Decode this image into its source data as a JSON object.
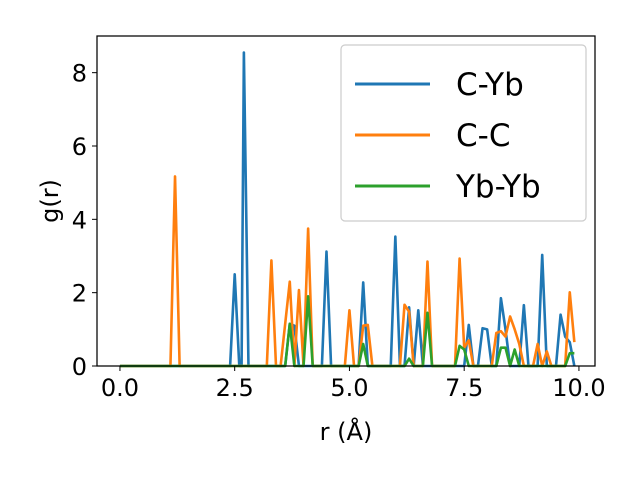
{
  "chart_data": {
    "type": "line",
    "xlabel": "r (Å)",
    "ylabel": "g(r)",
    "xlim": [
      -0.5,
      10.35
    ],
    "ylim": [
      0,
      9.0
    ],
    "xticks": [
      0.0,
      2.5,
      5.0,
      7.5,
      10.0
    ],
    "xtick_labels": [
      "0.0",
      "2.5",
      "5.0",
      "7.5",
      "10.0"
    ],
    "yticks": [
      0,
      2,
      4,
      6,
      8
    ],
    "ytick_labels": [
      "0",
      "2",
      "4",
      "6",
      "8"
    ],
    "grid": false,
    "legend_position": "top-right",
    "series": [
      {
        "name": "C-Yb",
        "color": "#1f77b4",
        "points": [
          [
            0,
            0
          ],
          [
            2.3,
            0
          ],
          [
            2.4,
            0
          ],
          [
            2.5,
            2.5
          ],
          [
            2.6,
            0
          ],
          [
            2.65,
            0
          ],
          [
            2.7,
            8.55
          ],
          [
            2.8,
            0
          ],
          [
            3.6,
            0
          ],
          [
            3.7,
            1.15
          ],
          [
            3.8,
            1.1
          ],
          [
            3.9,
            0
          ],
          [
            4.4,
            0
          ],
          [
            4.5,
            3.12
          ],
          [
            4.6,
            0
          ],
          [
            5.2,
            0
          ],
          [
            5.3,
            2.28
          ],
          [
            5.4,
            0
          ],
          [
            5.9,
            0
          ],
          [
            6.0,
            3.53
          ],
          [
            6.1,
            0
          ],
          [
            6.2,
            0
          ],
          [
            6.3,
            1.6
          ],
          [
            6.4,
            0
          ],
          [
            6.5,
            1.52
          ],
          [
            6.6,
            0
          ],
          [
            7.5,
            0
          ],
          [
            7.6,
            1.12
          ],
          [
            7.7,
            0
          ],
          [
            7.8,
            0
          ],
          [
            7.9,
            1.03
          ],
          [
            8.0,
            1.0
          ],
          [
            8.1,
            0
          ],
          [
            8.2,
            0
          ],
          [
            8.3,
            1.85
          ],
          [
            8.4,
            1.0
          ],
          [
            8.5,
            0
          ],
          [
            8.7,
            0
          ],
          [
            8.8,
            1.66
          ],
          [
            8.9,
            0
          ],
          [
            9.1,
            0
          ],
          [
            9.2,
            3.03
          ],
          [
            9.3,
            0
          ],
          [
            9.5,
            0
          ],
          [
            9.6,
            1.4
          ],
          [
            9.7,
            0.8
          ],
          [
            9.8,
            0.65
          ],
          [
            9.9,
            0
          ]
        ]
      },
      {
        "name": "C-C",
        "color": "#ff7f0e",
        "points": [
          [
            0,
            0
          ],
          [
            1.1,
            0
          ],
          [
            1.2,
            5.17
          ],
          [
            1.3,
            0
          ],
          [
            3.2,
            0
          ],
          [
            3.3,
            2.88
          ],
          [
            3.4,
            0
          ],
          [
            3.5,
            0
          ],
          [
            3.7,
            2.3
          ],
          [
            3.8,
            0
          ],
          [
            3.9,
            2.07
          ],
          [
            4.0,
            0
          ],
          [
            4.1,
            3.75
          ],
          [
            4.2,
            0
          ],
          [
            4.9,
            0
          ],
          [
            5.0,
            1.52
          ],
          [
            5.1,
            0
          ],
          [
            5.2,
            0
          ],
          [
            5.3,
            1.1
          ],
          [
            5.4,
            1.12
          ],
          [
            5.5,
            0
          ],
          [
            6.1,
            0
          ],
          [
            6.2,
            1.67
          ],
          [
            6.3,
            1.48
          ],
          [
            6.4,
            0
          ],
          [
            6.6,
            0
          ],
          [
            6.7,
            2.85
          ],
          [
            6.8,
            0
          ],
          [
            7.3,
            0
          ],
          [
            7.4,
            2.93
          ],
          [
            7.5,
            0.5
          ],
          [
            7.6,
            0.7
          ],
          [
            7.7,
            0
          ],
          [
            8.1,
            0
          ],
          [
            8.2,
            0.9
          ],
          [
            8.3,
            0.95
          ],
          [
            8.4,
            0.8
          ],
          [
            8.5,
            1.35
          ],
          [
            8.6,
            1.0
          ],
          [
            8.7,
            0.6
          ],
          [
            8.8,
            0
          ],
          [
            9.0,
            0
          ],
          [
            9.1,
            0.6
          ],
          [
            9.2,
            0
          ],
          [
            9.3,
            0.4
          ],
          [
            9.4,
            0
          ],
          [
            9.7,
            0
          ],
          [
            9.8,
            2.01
          ],
          [
            9.9,
            0.65
          ]
        ]
      },
      {
        "name": "Yb-Yb",
        "color": "#2ca02c",
        "points": [
          [
            0,
            0
          ],
          [
            3.6,
            0
          ],
          [
            3.7,
            1.15
          ],
          [
            3.8,
            0
          ],
          [
            4.0,
            0
          ],
          [
            4.1,
            1.9
          ],
          [
            4.2,
            0
          ],
          [
            5.2,
            0
          ],
          [
            5.3,
            0.6
          ],
          [
            5.4,
            0
          ],
          [
            6.2,
            0
          ],
          [
            6.3,
            0.2
          ],
          [
            6.4,
            0
          ],
          [
            6.6,
            0
          ],
          [
            6.7,
            1.45
          ],
          [
            6.8,
            0
          ],
          [
            7.3,
            0
          ],
          [
            7.4,
            0.55
          ],
          [
            7.5,
            0.45
          ],
          [
            7.6,
            0
          ],
          [
            8.2,
            0
          ],
          [
            8.3,
            0.5
          ],
          [
            8.4,
            0.5
          ],
          [
            8.5,
            0
          ],
          [
            8.6,
            0.45
          ],
          [
            8.7,
            0
          ],
          [
            9.7,
            0
          ],
          [
            9.8,
            0.35
          ],
          [
            9.9,
            0.35
          ]
        ]
      }
    ]
  }
}
